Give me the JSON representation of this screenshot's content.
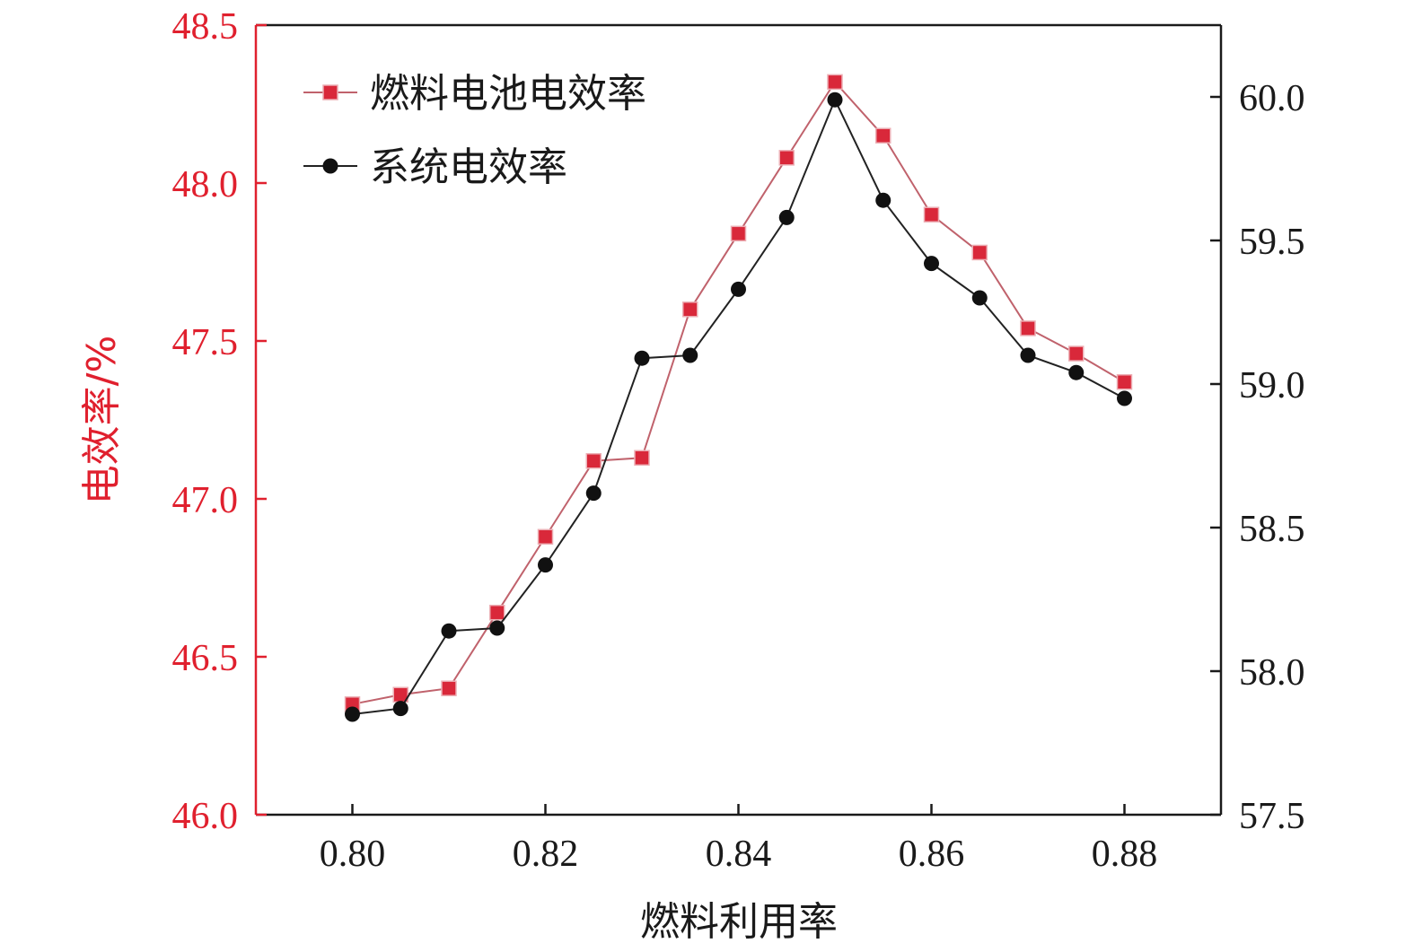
{
  "chart_data": {
    "type": "line",
    "xlabel": "燃料利用率",
    "ylabel": "电效率/%",
    "x": [
      0.8,
      0.805,
      0.81,
      0.815,
      0.82,
      0.825,
      0.83,
      0.835,
      0.84,
      0.845,
      0.85,
      0.855,
      0.86,
      0.865,
      0.87,
      0.875,
      0.88
    ],
    "xlim": [
      0.79,
      0.89
    ],
    "xticks": [
      "0.80",
      "0.82",
      "0.84",
      "0.86",
      "0.88"
    ],
    "xtick_values": [
      0.8,
      0.82,
      0.84,
      0.86,
      0.88
    ],
    "y_left": {
      "lim": [
        46.0,
        48.5
      ],
      "ticks": [
        "46.0",
        "46.5",
        "47.0",
        "47.5",
        "48.0",
        "48.5"
      ],
      "tick_values": [
        46.0,
        46.5,
        47.0,
        47.5,
        48.0,
        48.5
      ],
      "color": "#e0202e"
    },
    "y_right": {
      "lim": [
        57.5,
        60.25
      ],
      "ticks": [
        "57.5",
        "58.0",
        "58.5",
        "59.0",
        "59.5",
        "60.0"
      ],
      "tick_values": [
        57.5,
        58.0,
        58.5,
        59.0,
        59.5,
        60.0
      ],
      "color": "#1a1a1a"
    },
    "series": [
      {
        "name": "燃料电池电效率",
        "axis": "left",
        "marker": "square",
        "color": "#d9283a",
        "values": [
          46.35,
          46.38,
          46.4,
          46.64,
          46.88,
          47.12,
          47.13,
          47.6,
          47.84,
          48.08,
          48.32,
          48.15,
          47.9,
          47.78,
          47.54,
          47.46,
          47.37
        ]
      },
      {
        "name": "系统电效率",
        "axis": "right",
        "marker": "circle",
        "color": "#111111",
        "values": [
          57.85,
          57.87,
          58.14,
          58.15,
          58.37,
          58.62,
          59.09,
          59.1,
          59.33,
          59.58,
          59.99,
          59.64,
          59.42,
          59.3,
          59.1,
          59.04,
          58.95
        ]
      }
    ],
    "legend_position": "top-left",
    "grid": false
  }
}
